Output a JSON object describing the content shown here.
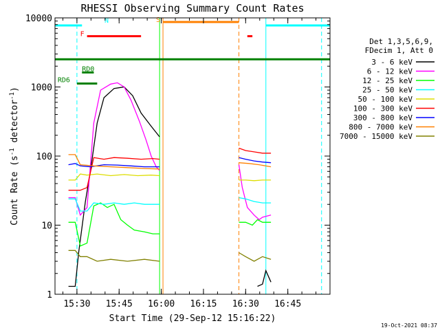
{
  "chart_data": {
    "type": "line",
    "title": "RHESSI Observing Summary Count Rates",
    "xlabel": "Start Time (29-Sep-12 15:16:22)",
    "ylabel_main": "Count Rate (s",
    "ylabel_sup1": "-1",
    "ylabel_mid": " detector",
    "ylabel_sup2": "-1",
    "ylabel_end": ")",
    "yscale": "log",
    "ylim": [
      1,
      10000
    ],
    "xlim_minutes": [
      15.37,
      17.0
    ],
    "x_ticks": [
      {
        "label": "15:30",
        "t": 15.5
      },
      {
        "label": "15:45",
        "t": 15.75
      },
      {
        "label": "16:00",
        "t": 16.0
      },
      {
        "label": "16:15",
        "t": 16.25
      },
      {
        "label": "16:30",
        "t": 16.5
      },
      {
        "label": "16:45",
        "t": 16.75
      }
    ],
    "y_ticks": [
      {
        "label": "1",
        "v": 1
      },
      {
        "label": "10",
        "v": 10
      },
      {
        "label": "100",
        "v": 100
      },
      {
        "label": "1000",
        "v": 1000
      },
      {
        "label": "10000",
        "v": 10000
      }
    ],
    "legend_header": [
      "Det 1,3,5,6,9,",
      "FDecim 1, Att 0"
    ],
    "series": [
      {
        "name": "3 - 6 keV",
        "color": "#000000",
        "segments": [
          [
            [
              15.45,
              1.3
            ],
            [
              15.49,
              1.3
            ],
            [
              15.51,
              4.0
            ],
            [
              15.55,
              22
            ],
            [
              15.58,
              60
            ],
            [
              15.62,
              300
            ],
            [
              15.66,
              700
            ],
            [
              15.72,
              950
            ],
            [
              15.78,
              1000
            ],
            [
              15.83,
              750
            ],
            [
              15.88,
              420
            ],
            [
              15.94,
              270
            ],
            [
              15.99,
              190
            ]
          ],
          [
            [
              16.57,
              1.3
            ],
            [
              16.6,
              1.4
            ],
            [
              16.62,
              2.2
            ],
            [
              16.65,
              1.5
            ]
          ]
        ]
      },
      {
        "name": "6 - 12 keV",
        "color": "#ff00ff",
        "segments": [
          [
            [
              15.45,
              25
            ],
            [
              15.49,
              25
            ],
            [
              15.52,
              14
            ],
            [
              15.56,
              18
            ],
            [
              15.6,
              300
            ],
            [
              15.64,
              900
            ],
            [
              15.7,
              1100
            ],
            [
              15.74,
              1150
            ],
            [
              15.78,
              1000
            ],
            [
              15.82,
              650
            ],
            [
              15.87,
              320
            ],
            [
              15.91,
              170
            ],
            [
              15.94,
              100
            ],
            [
              15.97,
              70
            ],
            [
              15.99,
              62
            ]
          ],
          [
            [
              16.46,
              75
            ],
            [
              16.48,
              35
            ],
            [
              16.51,
              18
            ],
            [
              16.55,
              14
            ],
            [
              16.58,
              12
            ],
            [
              16.6,
              13
            ],
            [
              16.65,
              14
            ]
          ]
        ]
      },
      {
        "name": "12 - 25 keV",
        "color": "#00ff00",
        "segments": [
          [
            [
              15.45,
              11
            ],
            [
              15.49,
              11
            ],
            [
              15.52,
              5.0
            ],
            [
              15.56,
              5.5
            ],
            [
              15.6,
              19
            ],
            [
              15.64,
              21
            ],
            [
              15.68,
              18
            ],
            [
              15.72,
              20
            ],
            [
              15.76,
              12
            ],
            [
              15.8,
              10
            ],
            [
              15.84,
              8.5
            ],
            [
              15.9,
              8
            ],
            [
              15.95,
              7.5
            ],
            [
              15.99,
              7.5
            ]
          ],
          [
            [
              16.46,
              11
            ],
            [
              16.5,
              11
            ],
            [
              16.54,
              10
            ],
            [
              16.57,
              12
            ],
            [
              16.6,
              11
            ],
            [
              16.65,
              11
            ]
          ]
        ]
      },
      {
        "name": "25 - 50 keV",
        "color": "#00ffff",
        "segments": [
          [
            [
              15.45,
              24
            ],
            [
              15.49,
              24
            ],
            [
              15.52,
              16
            ],
            [
              15.56,
              16
            ],
            [
              15.6,
              21
            ],
            [
              15.66,
              20
            ],
            [
              15.72,
              21
            ],
            [
              15.78,
              20
            ],
            [
              15.84,
              21
            ],
            [
              15.9,
              20
            ],
            [
              15.99,
              20
            ]
          ],
          [
            [
              16.46,
              25
            ],
            [
              16.5,
              24
            ],
            [
              16.55,
              22
            ],
            [
              16.6,
              21
            ],
            [
              16.65,
              21
            ]
          ]
        ]
      },
      {
        "name": "50 - 100 keV",
        "color": "#dddd00",
        "segments": [
          [
            [
              15.45,
              45
            ],
            [
              15.49,
              45
            ],
            [
              15.52,
              55
            ],
            [
              15.56,
              53
            ],
            [
              15.62,
              55
            ],
            [
              15.7,
              52
            ],
            [
              15.78,
              54
            ],
            [
              15.86,
              52
            ],
            [
              15.94,
              53
            ],
            [
              15.99,
              52
            ]
          ],
          [
            [
              16.46,
              45
            ],
            [
              16.5,
              45
            ],
            [
              16.55,
              44
            ],
            [
              16.6,
              45
            ],
            [
              16.65,
              45
            ]
          ]
        ]
      },
      {
        "name": "100 - 300 keV",
        "color": "#ff0000",
        "segments": [
          [
            [
              15.45,
              32
            ],
            [
              15.49,
              32
            ],
            [
              15.52,
              32
            ],
            [
              15.56,
              35
            ],
            [
              15.6,
              95
            ],
            [
              15.66,
              90
            ],
            [
              15.72,
              95
            ],
            [
              15.8,
              93
            ],
            [
              15.88,
              90
            ],
            [
              15.95,
              92
            ],
            [
              15.99,
              90
            ]
          ],
          [
            [
              16.46,
              130
            ],
            [
              16.5,
              120
            ],
            [
              16.55,
              115
            ],
            [
              16.6,
              110
            ],
            [
              16.65,
              110
            ]
          ]
        ]
      },
      {
        "name": "300 - 800 keV",
        "color": "#0000ff",
        "segments": [
          [
            [
              15.45,
              75
            ],
            [
              15.49,
              78
            ],
            [
              15.52,
              72
            ],
            [
              15.58,
              70
            ],
            [
              15.66,
              75
            ],
            [
              15.74,
              74
            ],
            [
              15.82,
              72
            ],
            [
              15.9,
              70
            ],
            [
              15.99,
              70
            ]
          ],
          [
            [
              16.46,
              95
            ],
            [
              16.5,
              90
            ],
            [
              16.55,
              85
            ],
            [
              16.6,
              82
            ],
            [
              16.65,
              80
            ]
          ]
        ]
      },
      {
        "name": "800 - 7000 keV",
        "color": "#ff8000",
        "segments": [
          [
            [
              15.45,
              105
            ],
            [
              15.49,
              105
            ],
            [
              15.52,
              75
            ],
            [
              15.6,
              72
            ],
            [
              15.7,
              70
            ],
            [
              15.8,
              68
            ],
            [
              15.9,
              66
            ],
            [
              15.99,
              65
            ]
          ],
          [
            [
              16.46,
              80
            ],
            [
              16.52,
              78
            ],
            [
              16.58,
              75
            ],
            [
              16.65,
              70
            ]
          ]
        ]
      },
      {
        "name": "7000 - 15000 keV",
        "color": "#808000",
        "segments": [
          [
            [
              15.45,
              4.3
            ],
            [
              15.49,
              4.3
            ],
            [
              15.52,
              3.5
            ],
            [
              15.56,
              3.5
            ],
            [
              15.62,
              3.0
            ],
            [
              15.7,
              3.2
            ],
            [
              15.8,
              3.0
            ],
            [
              15.9,
              3.2
            ],
            [
              15.99,
              3.0
            ]
          ],
          [
            [
              16.46,
              4.0
            ],
            [
              16.5,
              3.5
            ],
            [
              16.55,
              3.0
            ],
            [
              16.6,
              3.5
            ],
            [
              16.65,
              3.2
            ]
          ]
        ]
      }
    ],
    "flag_bars": [
      {
        "label": "N",
        "color": "#00ffff",
        "y": 0.89,
        "segments": [
          [
            15.37,
            15.53
          ],
          [
            16.62,
            17.0
          ]
        ]
      },
      {
        "label": "F",
        "color": "#ff0000",
        "y": 0.735,
        "segments": [
          [
            15.56,
            15.88
          ],
          [
            16.51,
            16.54
          ]
        ]
      },
      {
        "label": "S",
        "color": "#ff8000",
        "y": 0.94,
        "segments": [
          [
            16.01,
            16.46
          ]
        ]
      },
      {
        "label": "",
        "color": "#008000",
        "y": 0.4,
        "segments": [
          [
            15.37,
            17.0
          ]
        ]
      },
      {
        "label": "RD0",
        "color": "#008000",
        "y": 0.21,
        "segments": [
          [
            15.53,
            15.6
          ]
        ]
      },
      {
        "label": "RD6",
        "color": "#008000",
        "y": 0.05,
        "segments": [
          [
            15.5,
            15.62
          ]
        ]
      }
    ],
    "vlines": [
      {
        "t": 15.37,
        "color": "#00ffff",
        "dashed": false
      },
      {
        "t": 15.5,
        "color": "#00ffff",
        "dashed": true
      },
      {
        "t": 15.99,
        "color": "#00ff00",
        "dashed": false
      },
      {
        "t": 16.01,
        "color": "#ff8000",
        "dashed": false
      },
      {
        "t": 16.46,
        "color": "#ff8000",
        "dashed": true
      },
      {
        "t": 16.62,
        "color": "#00ffff",
        "dashed": false
      },
      {
        "t": 16.95,
        "color": "#00ffff",
        "dashed": true
      }
    ]
  },
  "footer": {
    "timestamp": "19-Oct-2021 08:37"
  }
}
